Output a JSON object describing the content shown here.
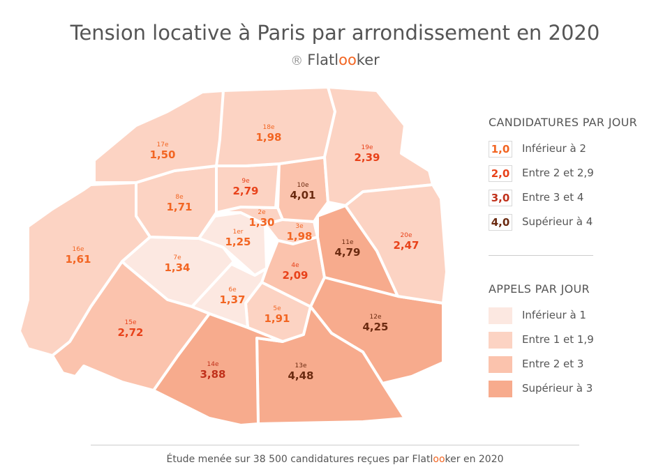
{
  "title": "Tension locative à Paris par arrondissement en 2020",
  "brand": {
    "registered": "®",
    "name_before": "Flatl",
    "name_oo": "oo",
    "name_after": "ker"
  },
  "colors": {
    "appels": [
      "#fce8e1",
      "#fcd3c3",
      "#fbc3ad",
      "#f7ab8d"
    ],
    "candidatures": [
      "#f26522",
      "#e8421a",
      "#c0311b",
      "#6b2a10"
    ],
    "border": "#ffffff"
  },
  "legend": {
    "candidatures": {
      "heading": "CANDIDATURES PAR JOUR",
      "items": [
        {
          "value": "1,0",
          "label": "Inférieur à 2"
        },
        {
          "value": "2,0",
          "label": "Entre 2 et 2,9"
        },
        {
          "value": "3,0",
          "label": "Entre 3 et 4"
        },
        {
          "value": "4,0",
          "label": "Supérieur à 4"
        }
      ]
    },
    "appels": {
      "heading": "APPELS PAR JOUR",
      "items": [
        {
          "label": "Inférieur à 1"
        },
        {
          "label": "Entre 1 et 1,9"
        },
        {
          "label": "Entre 2 et 3"
        },
        {
          "label": "Supérieur à 3"
        }
      ]
    }
  },
  "arrondissements": [
    {
      "id": "1er",
      "value": "1,25",
      "appels": 0,
      "cand": 0
    },
    {
      "id": "2e",
      "value": "1,30",
      "appels": 1,
      "cand": 0
    },
    {
      "id": "3e",
      "value": "1,98",
      "appels": 1,
      "cand": 0
    },
    {
      "id": "4e",
      "value": "2,09",
      "appels": 2,
      "cand": 1
    },
    {
      "id": "5e",
      "value": "1,91",
      "appels": 1,
      "cand": 0
    },
    {
      "id": "6e",
      "value": "1,37",
      "appels": 0,
      "cand": 0
    },
    {
      "id": "7e",
      "value": "1,34",
      "appels": 0,
      "cand": 0
    },
    {
      "id": "8e",
      "value": "1,71",
      "appels": 1,
      "cand": 0
    },
    {
      "id": "9e",
      "value": "2,79",
      "appels": 1,
      "cand": 1
    },
    {
      "id": "10e",
      "value": "4,01",
      "appels": 2,
      "cand": 3
    },
    {
      "id": "11e",
      "value": "4,79",
      "appels": 3,
      "cand": 3
    },
    {
      "id": "12e",
      "value": "4,25",
      "appels": 3,
      "cand": 3
    },
    {
      "id": "13e",
      "value": "4,48",
      "appels": 3,
      "cand": 3
    },
    {
      "id": "14e",
      "value": "3,88",
      "appels": 3,
      "cand": 2
    },
    {
      "id": "15e",
      "value": "2,72",
      "appels": 2,
      "cand": 1
    },
    {
      "id": "16e",
      "value": "1,61",
      "appels": 1,
      "cand": 0
    },
    {
      "id": "17e",
      "value": "1,50",
      "appels": 1,
      "cand": 0
    },
    {
      "id": "18e",
      "value": "1,98",
      "appels": 1,
      "cand": 0
    },
    {
      "id": "19e",
      "value": "2,39",
      "appels": 1,
      "cand": 1
    },
    {
      "id": "20e",
      "value": "2,47",
      "appels": 1,
      "cand": 1
    }
  ],
  "footer": {
    "before": "Étude menée sur 38 500 candidatures reçues par ",
    "name_before": "Flatl",
    "name_oo": "oo",
    "name_after": "ker",
    "after": " en 2020"
  }
}
